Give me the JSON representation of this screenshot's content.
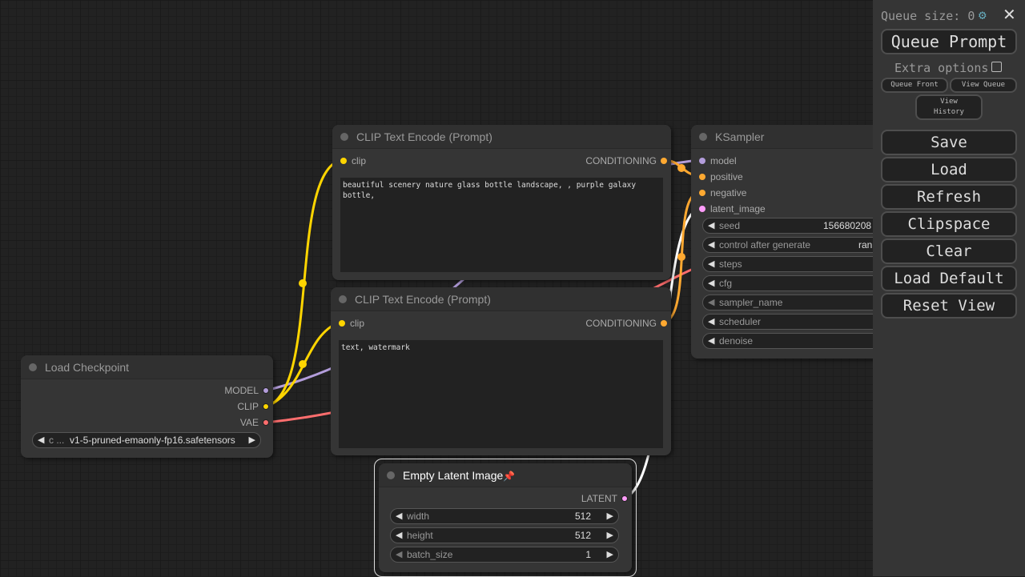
{
  "colors": {
    "clip": "#ffd500",
    "model": "#b39ddb",
    "vae": "#ff6e6e",
    "conditioning": "#ffa931",
    "latent": "#ff9cf9"
  },
  "nodes": {
    "clip_pos": {
      "title": "CLIP Text Encode (Prompt)",
      "input": "clip",
      "output": "CONDITIONING",
      "text": "beautiful scenery nature glass bottle landscape, , purple galaxy bottle,"
    },
    "clip_neg": {
      "title": "CLIP Text Encode (Prompt)",
      "input": "clip",
      "output": "CONDITIONING",
      "text": "text, watermark"
    },
    "checkpoint": {
      "title": "Load Checkpoint",
      "outputs": [
        "MODEL",
        "CLIP",
        "VAE"
      ],
      "ckpt_label": "c ...",
      "ckpt_value": "v1-5-pruned-emaonly-fp16.safetensors"
    },
    "latent": {
      "title": "Empty Latent Image",
      "pin": "📌",
      "output": "LATENT",
      "widgets": [
        {
          "label": "width",
          "value": "512"
        },
        {
          "label": "height",
          "value": "512"
        },
        {
          "label": "batch_size",
          "value": "1"
        }
      ]
    },
    "ksampler": {
      "title": "KSampler",
      "inputs": [
        "model",
        "positive",
        "negative",
        "latent_image"
      ],
      "widgets": [
        {
          "label": "seed",
          "value": "156680208"
        },
        {
          "label": "control after generate",
          "value": "ran"
        },
        {
          "label": "steps",
          "value": ""
        },
        {
          "label": "cfg",
          "value": ""
        },
        {
          "label": "sampler_name",
          "value": ""
        },
        {
          "label": "scheduler",
          "value": ""
        },
        {
          "label": "denoise",
          "value": ""
        }
      ]
    }
  },
  "panel": {
    "queue_size": "Queue size: 0",
    "queue_prompt": "Queue Prompt",
    "extra_options": "Extra options",
    "queue_front": "Queue Front",
    "view_queue": "View Queue",
    "view_history": "View History",
    "buttons": [
      "Save",
      "Load",
      "Refresh",
      "Clipspace",
      "Clear",
      "Load Default",
      "Reset View"
    ]
  }
}
